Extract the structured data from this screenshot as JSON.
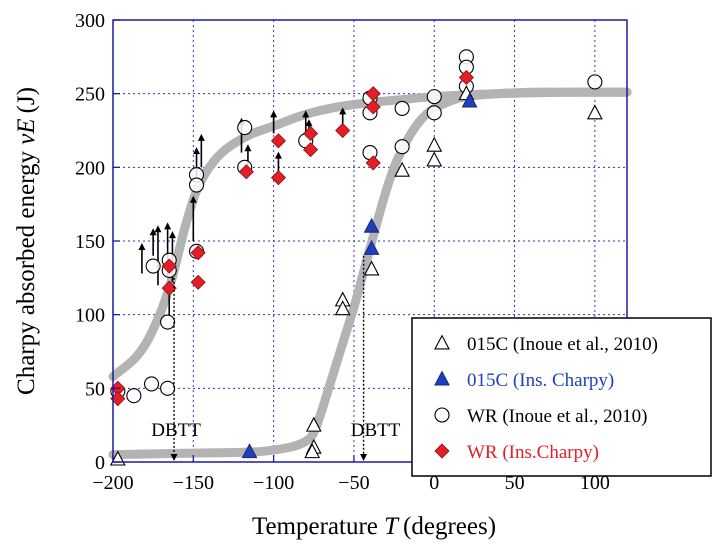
{
  "chart_data": {
    "type": "scatter",
    "title": "",
    "xlabel": "Temperature",
    "xlabel_var": "T",
    "xlabel_unit": "(degrees)",
    "ylabel": "Charpy absorbed energy",
    "ylabel_var": "vE",
    "ylabel_unit": "(J)",
    "xlim": [
      -200,
      120
    ],
    "ylim": [
      0,
      300
    ],
    "xticks": [
      -200,
      -150,
      -100,
      -50,
      0,
      50,
      100
    ],
    "yticks": [
      0,
      50,
      100,
      150,
      200,
      250,
      300
    ],
    "xtick_labels": [
      "−200",
      "−150",
      "−100",
      "−50",
      "0",
      "50",
      "100"
    ],
    "ytick_labels": [
      "0",
      "50",
      "100",
      "150",
      "200",
      "250",
      "300"
    ],
    "grid": true,
    "legend_position": "bottom-right",
    "colors": {
      "axis": "#1a1aa6",
      "grid": "#3333bb",
      "curve": "#b3b3b3",
      "blue": "#1f3fbf",
      "red": "#e41e26",
      "black": "#000000"
    },
    "fit_curves": [
      {
        "name": "WR transition curve",
        "x": [
          -200,
          -185,
          -175,
          -165,
          -155,
          -148,
          -140,
          -130,
          -115,
          -100,
          -80,
          -60,
          -40,
          -20,
          0,
          40,
          80,
          120
        ],
        "y": [
          58,
          72,
          90,
          118,
          160,
          184,
          200,
          212,
          222,
          228,
          236,
          241,
          244,
          246,
          248,
          250,
          251,
          251
        ]
      },
      {
        "name": "015C transition curve",
        "x": [
          -200,
          -150,
          -110,
          -90,
          -80,
          -75,
          -70,
          -60,
          -50,
          -45,
          -40,
          -35,
          -30,
          -25,
          -20,
          -15,
          -10,
          -5,
          0,
          10,
          20,
          40,
          60,
          80,
          120
        ],
        "y": [
          5,
          6,
          7,
          10,
          14,
          20,
          35,
          70,
          105,
          125,
          145,
          165,
          184,
          200,
          212,
          222,
          230,
          236,
          240,
          245,
          248,
          250,
          251,
          251,
          251
        ]
      }
    ],
    "series": [
      {
        "name": "015C (Inoue et al., 2010)",
        "marker": "open-triangle",
        "color": "#000000",
        "points": [
          [
            -197,
            2
          ],
          [
            -75,
            25
          ],
          [
            -75,
            10
          ],
          [
            -76,
            7
          ],
          [
            -57,
            110
          ],
          [
            -57,
            104
          ],
          [
            -39,
            131
          ],
          [
            -20,
            198
          ],
          [
            0,
            215
          ],
          [
            0,
            205
          ],
          [
            20,
            250
          ],
          [
            100,
            237
          ]
        ]
      },
      {
        "name": "015C (Ins. Charpy)",
        "marker": "filled-triangle",
        "color": "#1f3fbf",
        "points": [
          [
            -115,
            7
          ],
          [
            -39,
            160
          ],
          [
            -39,
            145
          ],
          [
            22,
            245
          ]
        ]
      },
      {
        "name": "WR (Inoue et al., 2010)",
        "marker": "open-circle",
        "color": "#000000",
        "points": [
          [
            -197,
            48
          ],
          [
            -187,
            45
          ],
          [
            -176,
            53
          ],
          [
            -175,
            133
          ],
          [
            -166,
            50
          ],
          [
            -165,
            137
          ],
          [
            -165,
            130
          ],
          [
            -166,
            95
          ],
          [
            -148,
            195
          ],
          [
            -148,
            188
          ],
          [
            -148,
            143
          ],
          [
            -118,
            227
          ],
          [
            -118,
            200
          ],
          [
            -80,
            218
          ],
          [
            -40,
            247
          ],
          [
            -40,
            237
          ],
          [
            -40,
            210
          ],
          [
            -20,
            240
          ],
          [
            -20,
            214
          ],
          [
            0,
            248
          ],
          [
            0,
            237
          ],
          [
            20,
            275
          ],
          [
            20,
            268
          ],
          [
            20,
            255
          ],
          [
            100,
            258
          ]
        ]
      },
      {
        "name": "WR (Ins.Charpy)",
        "marker": "filled-diamond",
        "color": "#e41e26",
        "points": [
          [
            -197,
            50
          ],
          [
            -197,
            43
          ],
          [
            -165,
            133
          ],
          [
            -165,
            118
          ],
          [
            -147,
            142
          ],
          [
            -147,
            122
          ],
          [
            -117,
            197
          ],
          [
            -97,
            218
          ],
          [
            -97,
            193
          ],
          [
            -77,
            223
          ],
          [
            -77,
            212
          ],
          [
            -57,
            225
          ],
          [
            -38,
            250
          ],
          [
            -38,
            241
          ],
          [
            -38,
            203
          ],
          [
            20,
            261
          ]
        ]
      }
    ],
    "arrow_temps": [
      -182,
      -175,
      -172,
      -166,
      -165,
      -163,
      -150,
      -148,
      -145,
      -120,
      -116,
      -100,
      -97,
      -80,
      -78,
      -57
    ],
    "arrows": [
      {
        "x": -172,
        "from": 120,
        "to": 160
      },
      {
        "x": -166,
        "from": 126,
        "to": 162
      },
      {
        "x": -165,
        "from": 100,
        "to": 120
      },
      {
        "x": -175,
        "from": 140,
        "to": 158
      },
      {
        "x": -163,
        "from": 122,
        "to": 156
      },
      {
        "x": -182,
        "from": 128,
        "to": 148
      },
      {
        "x": -150,
        "from": 150,
        "to": 180
      },
      {
        "x": -148,
        "from": 192,
        "to": 213
      },
      {
        "x": -145,
        "from": 200,
        "to": 222
      },
      {
        "x": -120,
        "from": 210,
        "to": 233
      },
      {
        "x": -116,
        "from": 196,
        "to": 215
      },
      {
        "x": -100,
        "from": 223,
        "to": 238
      },
      {
        "x": -97,
        "from": 196,
        "to": 210
      },
      {
        "x": -80,
        "from": 220,
        "to": 238
      },
      {
        "x": -78,
        "from": 225,
        "to": 232
      },
      {
        "x": -57,
        "from": 228,
        "to": 240
      }
    ],
    "annotations": [
      {
        "label": "DBTT",
        "x": -162,
        "label_y": 23,
        "arrow_from_y": 125,
        "arrow_to_y": 0
      },
      {
        "label": "DBTT",
        "x": -44,
        "label_y": 23,
        "arrow_from_y": 140,
        "arrow_to_y": 0
      }
    ]
  }
}
